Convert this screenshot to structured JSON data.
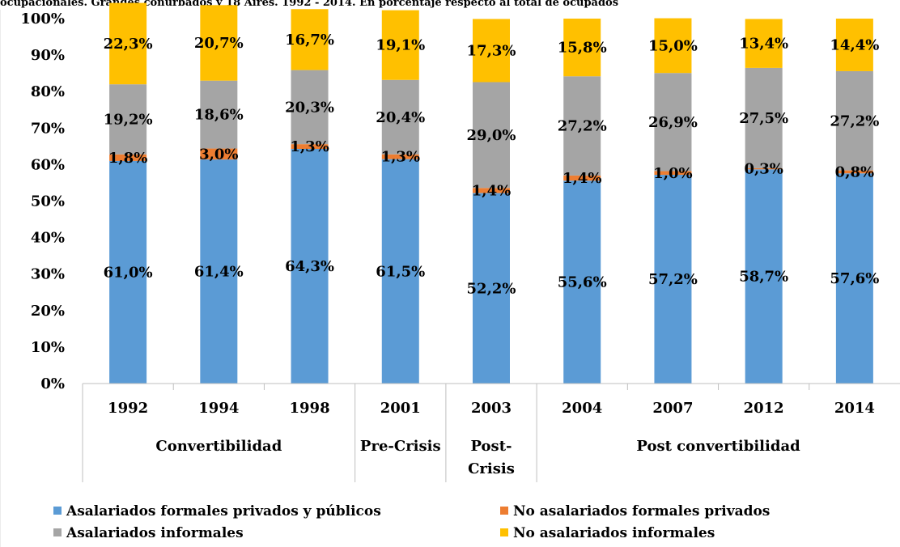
{
  "caption": "ocupacionales. Grandes conurbados y 18 Aires. 1992 - 2014. En porcentaje respecto al total de ocupados",
  "chart_data": {
    "type": "bar",
    "stacked": true,
    "percent": true,
    "categories": [
      "1992",
      "1994",
      "1998",
      "2001",
      "2003",
      "2004",
      "2007",
      "2012",
      "2014"
    ],
    "groups": [
      {
        "label": "Convertibilidad",
        "categories": [
          "1992",
          "1994",
          "1998"
        ]
      },
      {
        "label": "Pre-Crisis",
        "categories": [
          "2001"
        ]
      },
      {
        "label": "Post-\nCrisis",
        "categories": [
          "2003"
        ]
      },
      {
        "label": "Post convertibilidad",
        "categories": [
          "2004",
          "2007",
          "2012",
          "2014"
        ]
      }
    ],
    "ylim": [
      0,
      100
    ],
    "yticks": [
      "0%",
      "10%",
      "20%",
      "30%",
      "40%",
      "50%",
      "60%",
      "70%",
      "80%",
      "90%",
      "100%"
    ],
    "grid": false,
    "legend_position": "bottom",
    "series": [
      {
        "name": "Asalariados formales privados y públicos",
        "color": "#5B9BD5",
        "values": [
          61.0,
          61.4,
          64.3,
          61.5,
          52.2,
          55.6,
          57.2,
          58.7,
          57.6
        ],
        "labels": [
          "61,0%",
          "61,4%",
          "64,3%",
          "61,5%",
          "52,2%",
          "55,6%",
          "57,2%",
          "58,7%",
          "57,6%"
        ]
      },
      {
        "name": "No asalariados formales privados",
        "color": "#ED7D31",
        "values": [
          1.8,
          3.0,
          1.3,
          1.3,
          1.4,
          1.4,
          1.0,
          0.3,
          0.8
        ],
        "labels": [
          "1,8%",
          "3,0%",
          "1,3%",
          "1,3%",
          "1,4%",
          "1,4%",
          "1,0%",
          "0,3%",
          "0,8%"
        ]
      },
      {
        "name": "Asalariados informales",
        "color": "#A5A5A5",
        "values": [
          19.2,
          18.6,
          20.3,
          20.4,
          29.0,
          27.2,
          26.9,
          27.5,
          27.2
        ],
        "labels": [
          "19,2%",
          "18,6%",
          "20,3%",
          "20,4%",
          "29,0%",
          "27,2%",
          "26,9%",
          "27,5%",
          "27,2%"
        ]
      },
      {
        "name": "No asalariados informales",
        "color": "#FFC000",
        "values": [
          22.3,
          20.7,
          16.7,
          19.1,
          17.3,
          15.8,
          15.0,
          13.4,
          14.4
        ],
        "labels": [
          "22,3%",
          "20,7%",
          "16,7%",
          "19,1%",
          "17,3%",
          "15,8%",
          "15,0%",
          "13,4%",
          "14,4%"
        ]
      }
    ]
  }
}
